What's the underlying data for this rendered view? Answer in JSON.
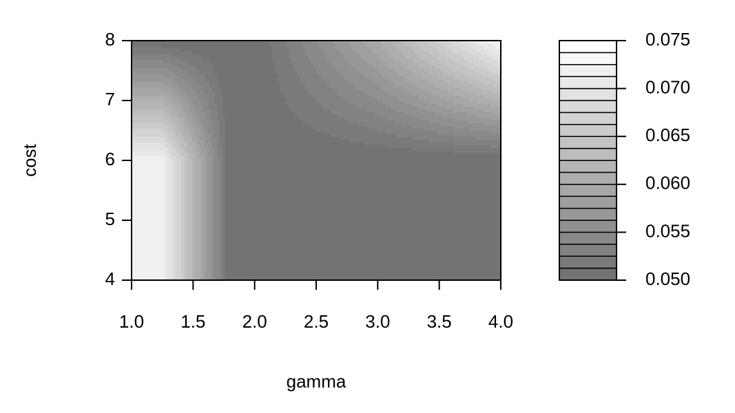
{
  "chart_data": {
    "type": "filled_contour",
    "x_label": "gamma",
    "y_label": "cost",
    "x": [
      1,
      1.25,
      1.8,
      2,
      3,
      4
    ],
    "y": [
      4,
      6,
      8
    ],
    "z": [
      [
        0.072,
        0.072,
        0.05,
        0.05,
        0.05,
        0.05
      ],
      [
        0.072,
        0.072,
        0.05,
        0.05,
        0.05,
        0.05
      ],
      [
        0.05,
        0.05,
        0.05,
        0.05,
        0.06,
        0.073
      ]
    ],
    "xlim": [
      1,
      4
    ],
    "xticks": [
      {
        "value": 1,
        "label": "1.0"
      },
      {
        "value": 1.5,
        "label": "1.5"
      },
      {
        "value": 2,
        "label": "2.0"
      },
      {
        "value": 2.5,
        "label": "2.5"
      },
      {
        "value": 3,
        "label": "3.0"
      },
      {
        "value": 3.5,
        "label": "3.5"
      },
      {
        "value": 4,
        "label": "4.0"
      }
    ],
    "ylim": [
      4,
      8
    ],
    "yticks": [
      4,
      5,
      6,
      7,
      8
    ],
    "zlim": [
      0.05,
      0.075
    ],
    "zticks": [
      {
        "value": 0.05,
        "label": "0.050"
      },
      {
        "value": 0.055,
        "label": "0.055"
      },
      {
        "value": 0.06,
        "label": "0.060"
      },
      {
        "value": 0.065,
        "label": "0.065"
      },
      {
        "value": 0.07,
        "label": "0.070"
      },
      {
        "value": 0.075,
        "label": "0.075"
      }
    ],
    "nlevels": 20,
    "color_low": "#737373",
    "color_high": "#ffffff"
  }
}
